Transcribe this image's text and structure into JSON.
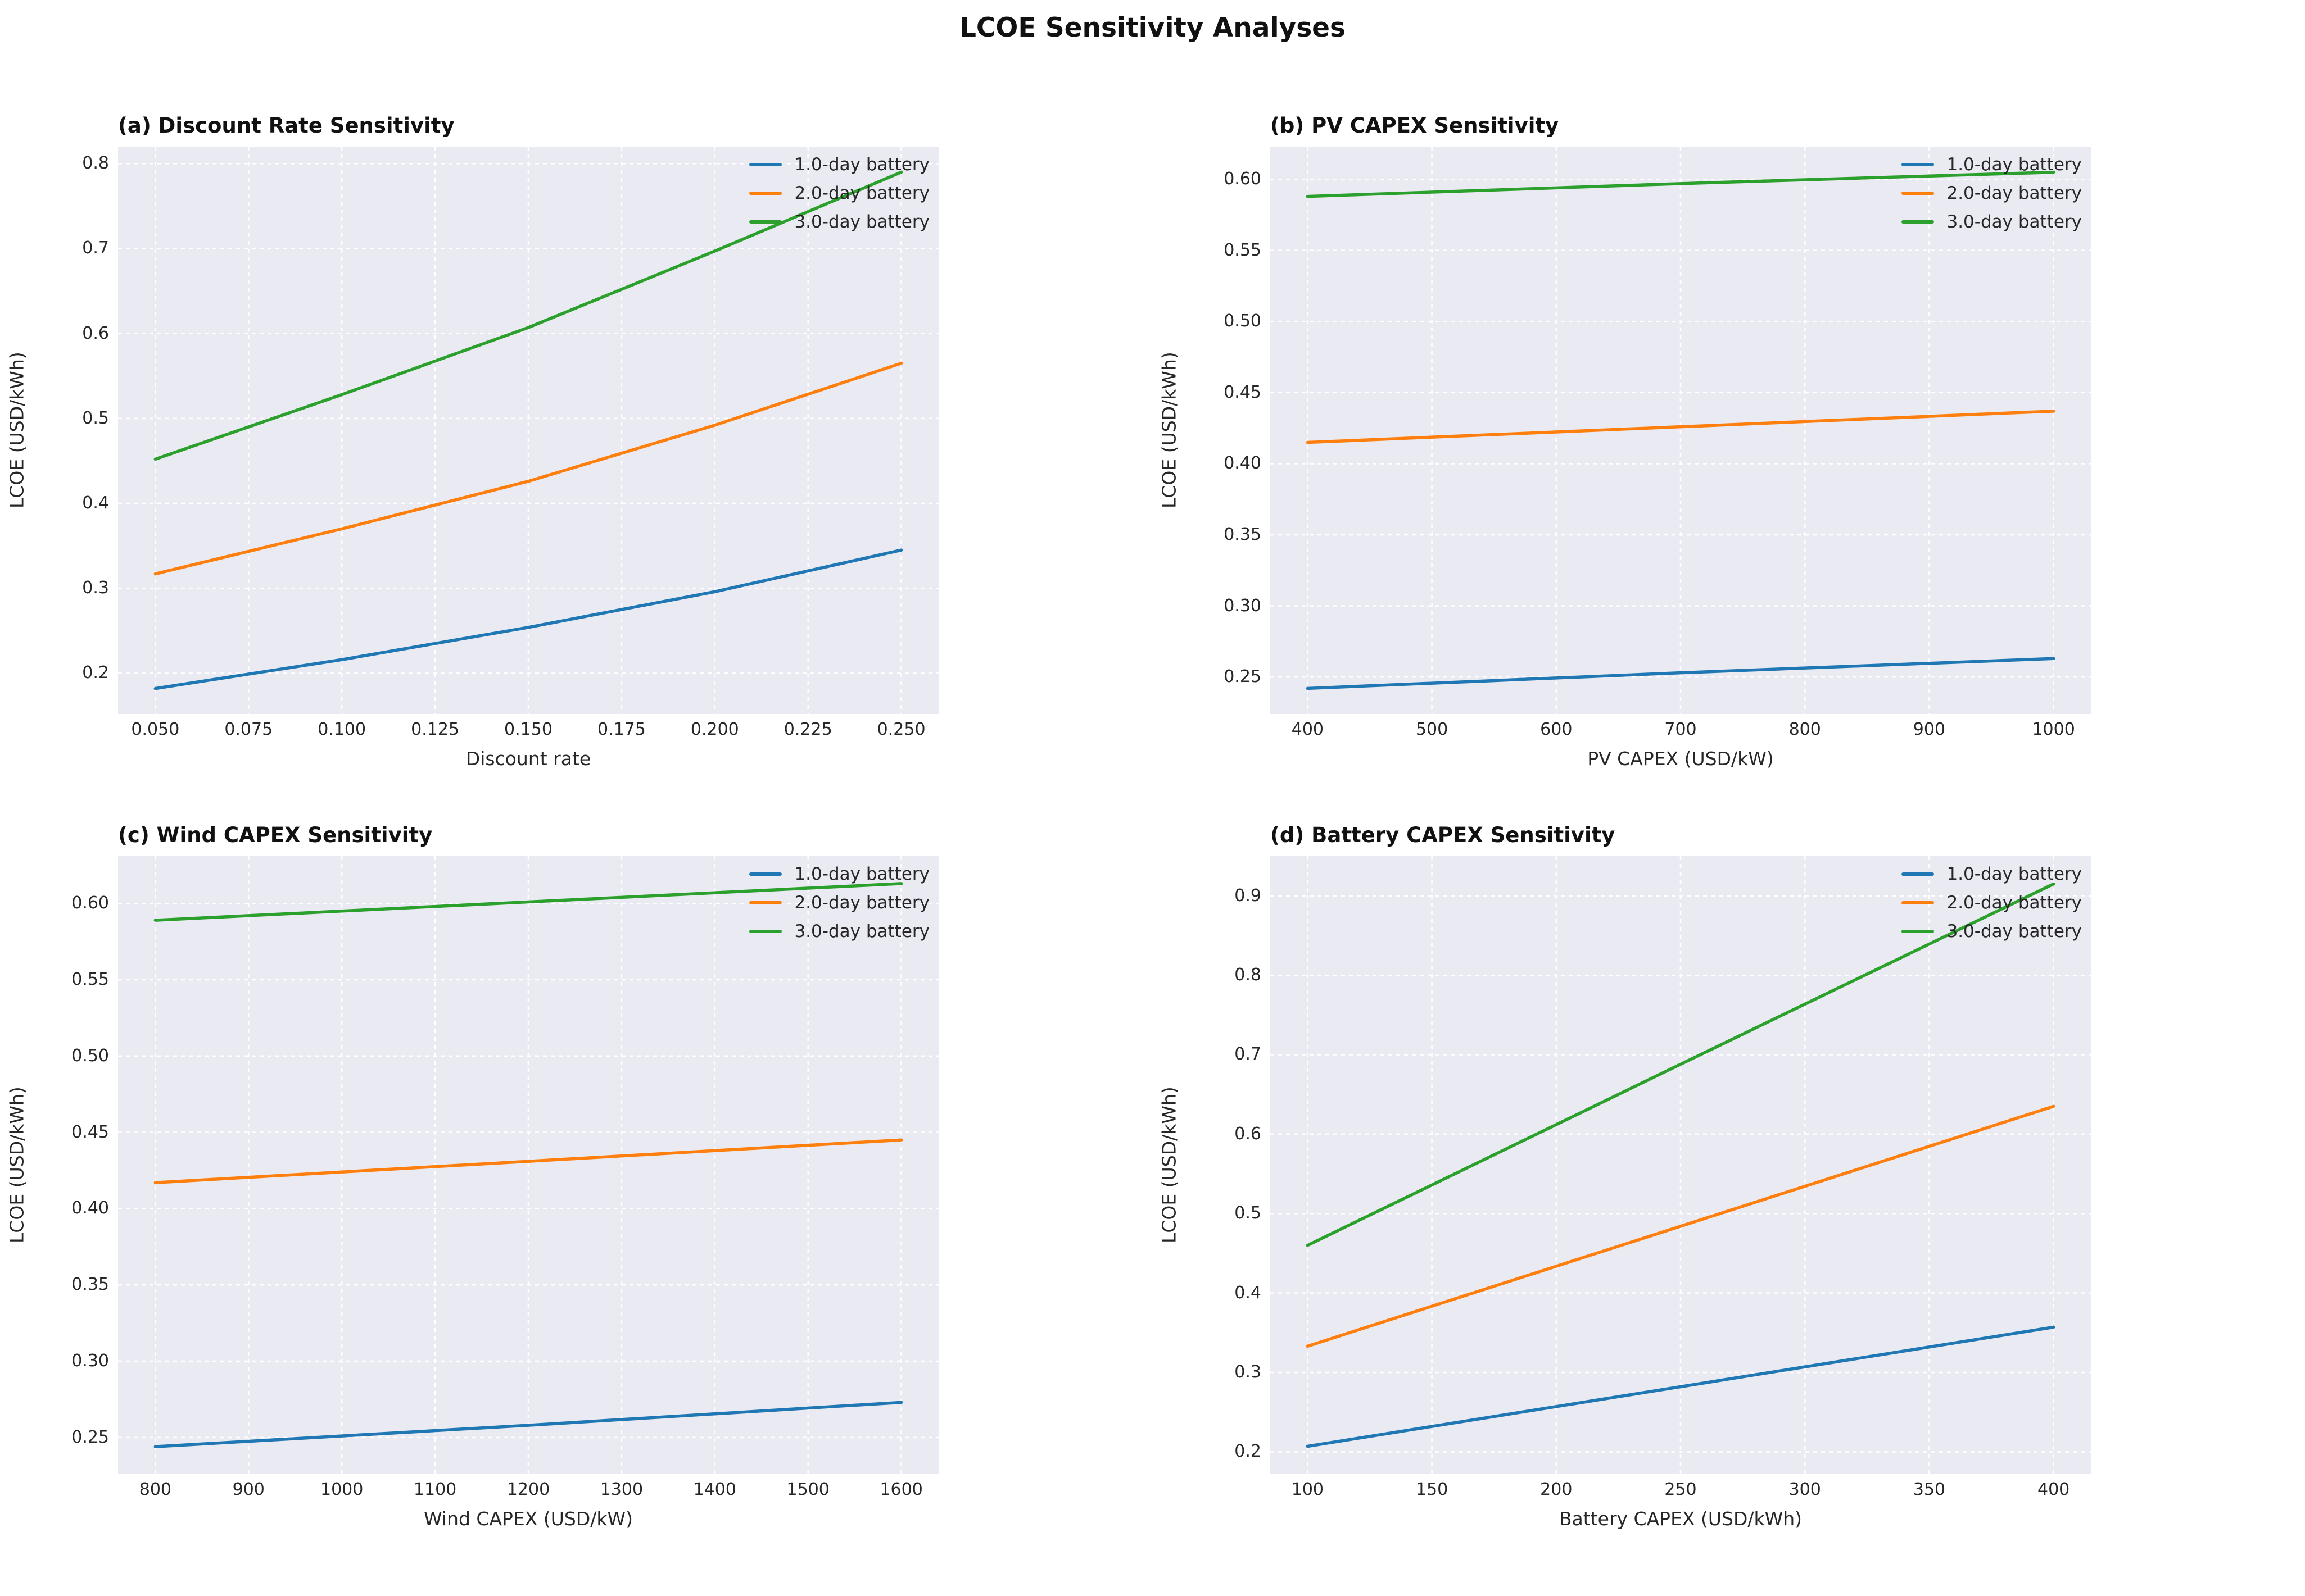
{
  "title": "LCOE Sensitivity Analyses",
  "colors": {
    "series_blue": "#1f77b4",
    "series_orange": "#ff7f0e",
    "series_green": "#2ca02c",
    "plot_background": "#eaeaf2",
    "gridline": "#ffffff",
    "text": "#262626"
  },
  "legend_labels": [
    "1.0-day battery",
    "2.0-day battery",
    "3.0-day battery"
  ],
  "chart_data": [
    {
      "id": "a",
      "type": "line",
      "title": "(a) Discount Rate Sensitivity",
      "xlabel": "Discount rate",
      "ylabel": "LCOE (USD/kWh)",
      "x": [
        0.05,
        0.1,
        0.15,
        0.2,
        0.25
      ],
      "series": [
        {
          "name": "1.0-day battery",
          "color": "#1f77b4",
          "values": [
            0.182,
            0.216,
            0.254,
            0.296,
            0.345
          ]
        },
        {
          "name": "2.0-day battery",
          "color": "#ff7f0e",
          "values": [
            0.317,
            0.37,
            0.426,
            0.492,
            0.565
          ]
        },
        {
          "name": "3.0-day battery",
          "color": "#2ca02c",
          "values": [
            0.452,
            0.528,
            0.607,
            0.697,
            0.79
          ]
        }
      ],
      "xlim": [
        0.04,
        0.26
      ],
      "ylim": [
        0.152,
        0.82
      ],
      "xtick_values": [
        0.05,
        0.075,
        0.1,
        0.125,
        0.15,
        0.175,
        0.2,
        0.225,
        0.25
      ],
      "xtick_labels": [
        "0.050",
        "0.075",
        "0.100",
        "0.125",
        "0.150",
        "0.175",
        "0.200",
        "0.225",
        "0.250"
      ],
      "ytick_values": [
        0.2,
        0.3,
        0.4,
        0.5,
        0.6,
        0.7,
        0.8
      ],
      "ytick_labels": [
        "0.2",
        "0.3",
        "0.4",
        "0.5",
        "0.6",
        "0.7",
        "0.8"
      ],
      "grid": true,
      "legend_position": "upper right"
    },
    {
      "id": "b",
      "type": "line",
      "title": "(b) PV CAPEX Sensitivity",
      "xlabel": "PV CAPEX (USD/kW)",
      "ylabel": "LCOE (USD/kWh)",
      "x": [
        400,
        700,
        1000
      ],
      "series": [
        {
          "name": "1.0-day battery",
          "color": "#1f77b4",
          "values": [
            0.242,
            0.253,
            0.263
          ]
        },
        {
          "name": "2.0-day battery",
          "color": "#ff7f0e",
          "values": [
            0.415,
            0.426,
            0.437
          ]
        },
        {
          "name": "3.0-day battery",
          "color": "#2ca02c",
          "values": [
            0.588,
            0.597,
            0.605
          ]
        }
      ],
      "xlim": [
        370,
        1030
      ],
      "ylim": [
        0.224,
        0.623
      ],
      "xtick_values": [
        400,
        500,
        600,
        700,
        800,
        900,
        1000
      ],
      "xtick_labels": [
        "400",
        "500",
        "600",
        "700",
        "800",
        "900",
        "1000"
      ],
      "ytick_values": [
        0.25,
        0.3,
        0.35,
        0.4,
        0.45,
        0.5,
        0.55,
        0.6
      ],
      "ytick_labels": [
        "0.25",
        "0.30",
        "0.35",
        "0.40",
        "0.45",
        "0.50",
        "0.55",
        "0.60"
      ],
      "grid": true,
      "legend_position": "upper right"
    },
    {
      "id": "c",
      "type": "line",
      "title": "(c) Wind CAPEX Sensitivity",
      "xlabel": "Wind CAPEX (USD/kW)",
      "ylabel": "LCOE (USD/kWh)",
      "x": [
        800,
        1200,
        1600
      ],
      "series": [
        {
          "name": "1.0-day battery",
          "color": "#1f77b4",
          "values": [
            0.244,
            0.258,
            0.273
          ]
        },
        {
          "name": "2.0-day battery",
          "color": "#ff7f0e",
          "values": [
            0.417,
            0.431,
            0.445
          ]
        },
        {
          "name": "3.0-day battery",
          "color": "#2ca02c",
          "values": [
            0.589,
            0.601,
            0.613
          ]
        }
      ],
      "xlim": [
        760,
        1640
      ],
      "ylim": [
        0.226,
        0.631
      ],
      "xtick_values": [
        800,
        900,
        1000,
        1100,
        1200,
        1300,
        1400,
        1500,
        1600
      ],
      "xtick_labels": [
        "800",
        "900",
        "1000",
        "1100",
        "1200",
        "1300",
        "1400",
        "1500",
        "1600"
      ],
      "ytick_values": [
        0.25,
        0.3,
        0.35,
        0.4,
        0.45,
        0.5,
        0.55,
        0.6
      ],
      "ytick_labels": [
        "0.25",
        "0.30",
        "0.35",
        "0.40",
        "0.45",
        "0.50",
        "0.55",
        "0.60"
      ],
      "grid": true,
      "legend_position": "upper right"
    },
    {
      "id": "d",
      "type": "line",
      "title": "(d) Battery CAPEX Sensitivity",
      "xlabel": "Battery CAPEX (USD/kWh)",
      "ylabel": "LCOE (USD/kWh)",
      "x": [
        100,
        250,
        400
      ],
      "series": [
        {
          "name": "1.0-day battery",
          "color": "#1f77b4",
          "values": [
            0.207,
            0.282,
            0.357
          ]
        },
        {
          "name": "2.0-day battery",
          "color": "#ff7f0e",
          "values": [
            0.333,
            0.484,
            0.635
          ]
        },
        {
          "name": "3.0-day battery",
          "color": "#2ca02c",
          "values": [
            0.46,
            0.688,
            0.915
          ]
        }
      ],
      "xlim": [
        85,
        415
      ],
      "ylim": [
        0.172,
        0.95
      ],
      "xtick_values": [
        100,
        150,
        200,
        250,
        300,
        350,
        400
      ],
      "xtick_labels": [
        "100",
        "150",
        "200",
        "250",
        "300",
        "350",
        "400"
      ],
      "ytick_values": [
        0.2,
        0.3,
        0.4,
        0.5,
        0.6,
        0.7,
        0.8,
        0.9
      ],
      "ytick_labels": [
        "0.2",
        "0.3",
        "0.4",
        "0.5",
        "0.6",
        "0.7",
        "0.8",
        "0.9"
      ],
      "grid": true,
      "legend_position": "upper right"
    }
  ]
}
